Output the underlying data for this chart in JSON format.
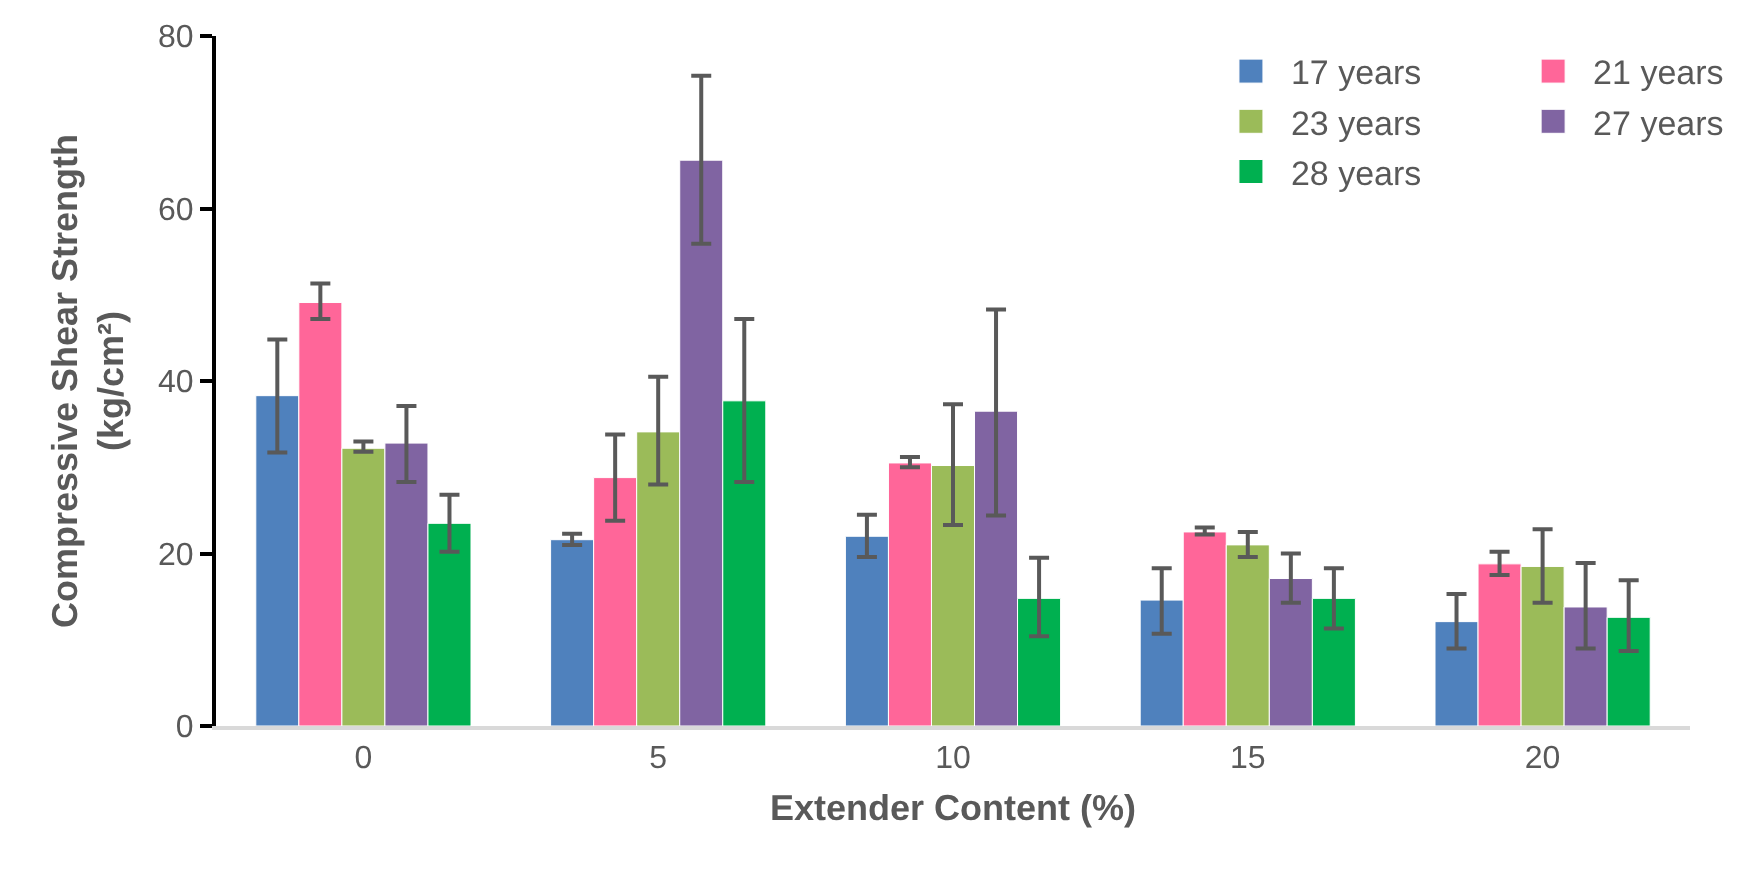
{
  "chart_data": {
    "type": "bar",
    "xlabel": "Extender Content (%)",
    "ylabel": "Compressive Shear Strength\n(kg/cm²)",
    "categories": [
      "0",
      "5",
      "10",
      "15",
      "20"
    ],
    "ylim": [
      0,
      80
    ],
    "yticks": [
      0,
      20,
      40,
      60,
      80
    ],
    "grid": false,
    "legend": "top right",
    "series": [
      {
        "name": "17 years",
        "color": "#4f81bd",
        "values": [
          38.3,
          21.6,
          22.0,
          14.6,
          12.1
        ],
        "errors": [
          [
            31.7,
            44.8
          ],
          [
            21.0,
            22.3
          ],
          [
            19.6,
            24.5
          ],
          [
            10.7,
            18.3
          ],
          [
            9.0,
            15.3
          ]
        ]
      },
      {
        "name": "21 years",
        "color": "#ff6699",
        "values": [
          49.1,
          28.8,
          30.5,
          22.5,
          18.8
        ],
        "errors": [
          [
            47.2,
            51.3
          ],
          [
            23.8,
            33.8
          ],
          [
            30.0,
            31.2
          ],
          [
            22.2,
            23.0
          ],
          [
            17.5,
            20.2
          ]
        ]
      },
      {
        "name": "23 years",
        "color": "#9bbb59",
        "values": [
          32.2,
          34.1,
          30.2,
          21.0,
          18.5
        ],
        "errors": [
          [
            31.8,
            33.0
          ],
          [
            28.0,
            40.5
          ],
          [
            23.3,
            37.3
          ],
          [
            19.6,
            22.5
          ],
          [
            14.3,
            22.8
          ]
        ]
      },
      {
        "name": "27 years",
        "color": "#8064a2",
        "values": [
          32.8,
          65.6,
          36.5,
          17.1,
          13.8
        ],
        "errors": [
          [
            28.3,
            37.1
          ],
          [
            55.9,
            75.4
          ],
          [
            24.4,
            48.3
          ],
          [
            14.3,
            20.0
          ],
          [
            9.0,
            18.9
          ]
        ]
      },
      {
        "name": "28 years",
        "color": "#00b050",
        "values": [
          23.5,
          37.7,
          14.8,
          14.8,
          12.6
        ],
        "errors": [
          [
            20.2,
            26.8
          ],
          [
            28.3,
            47.2
          ],
          [
            10.4,
            19.5
          ],
          [
            11.3,
            18.3
          ],
          [
            8.7,
            16.9
          ]
        ]
      }
    ]
  }
}
